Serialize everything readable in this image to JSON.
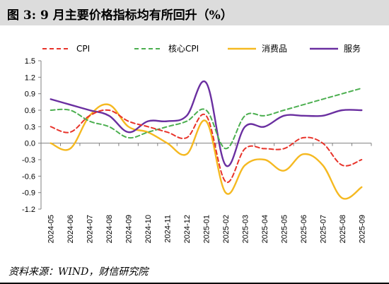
{
  "header": {
    "title": "图 3:  9 月主要价格指标均有所回升（%）"
  },
  "footer": {
    "source": "资料来源：WIND，财信研究院"
  },
  "colors": {
    "cpi": "#e8332a",
    "core_cpi": "#4caf50",
    "consumer_goods": "#f5b921",
    "services": "#6a2fa0",
    "axis": "#808080",
    "title_bg": "#dcdcdc"
  },
  "chart_data": {
    "type": "line",
    "categories": [
      "2024-05",
      "2024-06",
      "2024-07",
      "2024-08",
      "2024-09",
      "2024-10",
      "2024-11",
      "2024-12",
      "2025-01",
      "2025-02",
      "2025-03",
      "2025-04",
      "2025-05",
      "2025-06",
      "2025-07",
      "2025-08",
      "2025-09"
    ],
    "y_ticks": [
      "1.5",
      "1.2",
      "0.9",
      "0.6",
      "0.3",
      "0.0",
      "-0.3",
      "-0.6",
      "-0.9",
      "-1.2"
    ],
    "ylim": [
      -1.2,
      1.5
    ],
    "legend_position": "top",
    "grid": false,
    "series": [
      {
        "name": "CPI",
        "style": "dashed",
        "color": "#e8332a",
        "values": [
          0.3,
          0.2,
          0.5,
          0.6,
          0.4,
          0.3,
          0.2,
          0.1,
          0.5,
          -0.7,
          -0.1,
          -0.1,
          -0.1,
          0.1,
          0.0,
          -0.4,
          -0.3
        ]
      },
      {
        "name": "核心CPI",
        "style": "dashed",
        "color": "#4caf50",
        "values": [
          0.6,
          0.6,
          0.4,
          0.3,
          0.1,
          0.2,
          0.3,
          0.4,
          0.6,
          -0.1,
          0.5,
          0.5,
          0.6,
          0.7,
          0.8,
          0.9,
          1.0
        ]
      },
      {
        "name": "消费品",
        "style": "solid",
        "color": "#f5b921",
        "values": [
          0.0,
          -0.1,
          0.5,
          0.7,
          0.3,
          0.2,
          0.0,
          -0.2,
          0.4,
          -0.9,
          -0.4,
          -0.3,
          -0.5,
          -0.2,
          -0.4,
          -1.0,
          -0.8
        ]
      },
      {
        "name": "服务",
        "style": "solid",
        "color": "#6a2fa0",
        "values": [
          0.8,
          0.7,
          0.6,
          0.5,
          0.2,
          0.4,
          0.4,
          0.5,
          1.1,
          -0.4,
          0.3,
          0.3,
          0.5,
          0.5,
          0.5,
          0.6,
          0.6
        ]
      }
    ]
  }
}
